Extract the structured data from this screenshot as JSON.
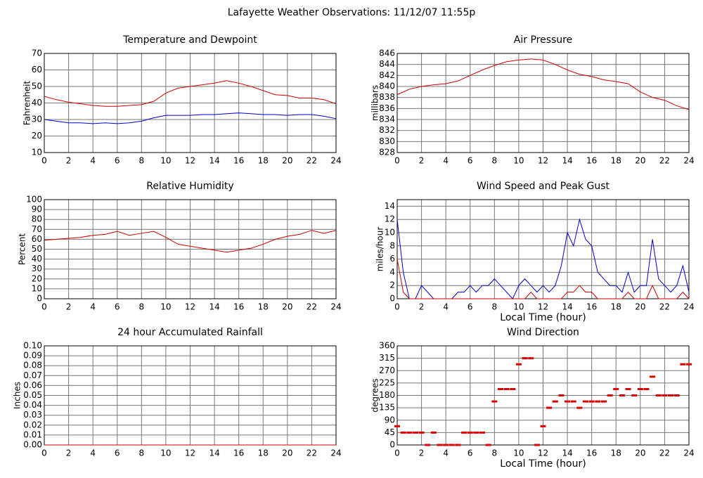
{
  "page_title": "Lafayette Weather Observations: 11/12/07 11:55p",
  "chart_data": [
    {
      "type": "line",
      "title": "Temperature and Dewpoint",
      "ylabel": "Fahrenheit",
      "x": [
        0,
        1,
        2,
        3,
        4,
        5,
        6,
        7,
        8,
        9,
        10,
        11,
        12,
        13,
        14,
        15,
        16,
        17,
        18,
        19,
        20,
        21,
        22,
        23,
        24
      ],
      "series": [
        {
          "color": "#cc0000",
          "values": [
            44,
            42,
            40.5,
            39.5,
            38.5,
            38,
            38,
            38.5,
            39,
            41,
            46,
            49,
            50,
            51,
            52,
            53.5,
            52,
            50,
            47.5,
            45,
            44.5,
            43,
            43,
            42,
            39.5
          ]
        },
        {
          "color": "#0000cc",
          "values": [
            30,
            29,
            28,
            28,
            27.5,
            28,
            27.5,
            28,
            29,
            31,
            32.5,
            32.5,
            32.5,
            33,
            33,
            33.5,
            34,
            33.5,
            33,
            33,
            32.5,
            33,
            33,
            32,
            30.5
          ]
        }
      ],
      "xlim": [
        0,
        24
      ],
      "xticks": [
        0,
        2,
        4,
        6,
        8,
        10,
        12,
        14,
        16,
        18,
        20,
        22,
        24
      ],
      "ylim": [
        10,
        70
      ],
      "yticks": [
        10,
        20,
        30,
        40,
        50,
        60,
        70
      ]
    },
    {
      "type": "line",
      "title": "Air Pressure",
      "ylabel": "millibars",
      "x": [
        0,
        1,
        2,
        3,
        4,
        5,
        6,
        7,
        8,
        9,
        10,
        11,
        12,
        13,
        14,
        15,
        16,
        17,
        18,
        19,
        20,
        21,
        22,
        23,
        24
      ],
      "series": [
        {
          "color": "#cc0000",
          "values": [
            838.5,
            839.5,
            840,
            840.3,
            840.5,
            841,
            842,
            843,
            843.8,
            844.5,
            844.8,
            845,
            844.8,
            844,
            843,
            842.2,
            841.8,
            841.2,
            840.9,
            840.5,
            839,
            838,
            837.5,
            836.5,
            835.8
          ]
        }
      ],
      "xlim": [
        0,
        24
      ],
      "xticks": [
        0,
        2,
        4,
        6,
        8,
        10,
        12,
        14,
        16,
        18,
        20,
        22,
        24
      ],
      "ylim": [
        828,
        846
      ],
      "yticks": [
        828,
        830,
        832,
        834,
        836,
        838,
        840,
        842,
        844,
        846
      ]
    },
    {
      "type": "line",
      "title": "Relative Humidity",
      "ylabel": "Percent",
      "x": [
        0,
        1,
        2,
        3,
        4,
        5,
        6,
        7,
        8,
        9,
        10,
        11,
        12,
        13,
        14,
        15,
        16,
        17,
        18,
        19,
        20,
        21,
        22,
        23,
        24
      ],
      "series": [
        {
          "color": "#cc0000",
          "values": [
            59,
            60,
            61,
            62,
            64,
            65,
            68,
            64,
            66,
            68,
            62,
            55,
            53,
            51,
            49,
            47,
            49,
            51,
            55,
            60,
            63,
            65,
            69,
            66,
            69
          ]
        }
      ],
      "xlim": [
        0,
        24
      ],
      "xticks": [
        0,
        2,
        4,
        6,
        8,
        10,
        12,
        14,
        16,
        18,
        20,
        22,
        24
      ],
      "ylim": [
        0,
        100
      ],
      "yticks": [
        0,
        10,
        20,
        30,
        40,
        50,
        60,
        70,
        80,
        90,
        100
      ]
    },
    {
      "type": "line",
      "title": "Wind Speed and Peak Gust",
      "xlabel": "Local Time (hour)",
      "ylabel": "miles/hour",
      "x": [
        0,
        0.5,
        1,
        1.5,
        2,
        2.5,
        3,
        3.5,
        4,
        4.5,
        5,
        5.5,
        6,
        6.5,
        7,
        7.5,
        8,
        8.5,
        9,
        9.5,
        10,
        10.5,
        11,
        11.5,
        12,
        12.5,
        13,
        13.5,
        14,
        14.5,
        15,
        15.5,
        16,
        16.5,
        17,
        17.5,
        18,
        18.5,
        19,
        19.5,
        20,
        20.5,
        21,
        21.5,
        22,
        22.5,
        23,
        23.5,
        24
      ],
      "series": [
        {
          "color": "#0000cc",
          "values": [
            12,
            4,
            0,
            0,
            2,
            1,
            0,
            0,
            0,
            0,
            1,
            1,
            2,
            1,
            2,
            2,
            3,
            2,
            1,
            0,
            2,
            3,
            2,
            1,
            2,
            1,
            2,
            5,
            10,
            8,
            12,
            9,
            8,
            4,
            3,
            2,
            2,
            1,
            4,
            1,
            2,
            2,
            9,
            3,
            2,
            1,
            2,
            5,
            1
          ]
        },
        {
          "color": "#cc0000",
          "values": [
            6,
            1,
            0,
            0,
            0,
            0,
            0,
            0,
            0,
            0,
            0,
            0,
            0,
            0,
            0,
            0,
            0,
            0,
            0,
            0,
            0,
            0,
            1,
            0,
            0,
            0,
            0,
            0,
            1,
            1,
            2,
            1,
            1,
            0,
            0,
            0,
            0,
            0,
            1,
            0,
            0,
            0,
            2,
            0,
            0,
            0,
            0,
            1,
            0
          ]
        }
      ],
      "xlim": [
        0,
        24
      ],
      "xticks": [
        0,
        2,
        4,
        6,
        8,
        10,
        12,
        14,
        16,
        18,
        20,
        22,
        24
      ],
      "ylim": [
        0,
        15
      ],
      "yticks": [
        0,
        2,
        4,
        6,
        8,
        10,
        12,
        14
      ]
    },
    {
      "type": "line",
      "title": "24 hour Accumulated Rainfall",
      "ylabel": "Inches",
      "x": [
        0,
        24
      ],
      "series": [
        {
          "color": "#cc0000",
          "values": [
            0,
            0
          ]
        }
      ],
      "xlim": [
        0,
        24
      ],
      "xticks": [
        0,
        2,
        4,
        6,
        8,
        10,
        12,
        14,
        16,
        18,
        20,
        22,
        24
      ],
      "ylim": [
        0,
        0.1
      ],
      "yticks": [
        {
          "value": 0,
          "label": "0.00"
        },
        {
          "value": 0.01,
          "label": "0.01"
        },
        {
          "value": 0.02,
          "label": "0.02"
        },
        {
          "value": 0.03,
          "label": "0.03"
        },
        {
          "value": 0.04,
          "label": "0.04"
        },
        {
          "value": 0.05,
          "label": "0.05"
        },
        {
          "value": 0.06,
          "label": "0.06"
        },
        {
          "value": 0.07,
          "label": "0.07"
        },
        {
          "value": 0.08,
          "label": "0.08"
        },
        {
          "value": 0.09,
          "label": "0.09"
        },
        {
          "value": 0.1,
          "label": "0.10"
        }
      ]
    },
    {
      "type": "scatter",
      "title": "Wind Direction",
      "xlabel": "Local Time (hour)",
      "ylabel": "degrees",
      "x": [
        0,
        0.5,
        1,
        1.5,
        2,
        2.5,
        3,
        3.5,
        4,
        4.5,
        5,
        5.5,
        6,
        6.5,
        7,
        7.5,
        8,
        8.5,
        9,
        9.5,
        10,
        10.5,
        11,
        11.5,
        12,
        12.5,
        13,
        13.5,
        14,
        14.5,
        15,
        15.5,
        16,
        16.5,
        17,
        17.5,
        18,
        18.5,
        19,
        19.5,
        20,
        20.5,
        21,
        21.5,
        22,
        22.5,
        23,
        23.5,
        24
      ],
      "series": [
        {
          "color": "#dd0000",
          "values": [
            68,
            45,
            45,
            45,
            45,
            0,
            45,
            0,
            0,
            0,
            0,
            45,
            45,
            45,
            45,
            0,
            158,
            203,
            203,
            203,
            293,
            315,
            315,
            0,
            68,
            135,
            158,
            180,
            158,
            158,
            135,
            158,
            158,
            158,
            158,
            180,
            203,
            180,
            203,
            180,
            203,
            203,
            248,
            180,
            180,
            180,
            180,
            293,
            293
          ]
        }
      ],
      "xlim": [
        0,
        24
      ],
      "xticks": [
        0,
        2,
        4,
        6,
        8,
        10,
        12,
        14,
        16,
        18,
        20,
        22,
        24
      ],
      "ylim": [
        0,
        360
      ],
      "yticks": [
        0,
        45,
        90,
        135,
        180,
        225,
        270,
        315,
        360
      ]
    }
  ]
}
